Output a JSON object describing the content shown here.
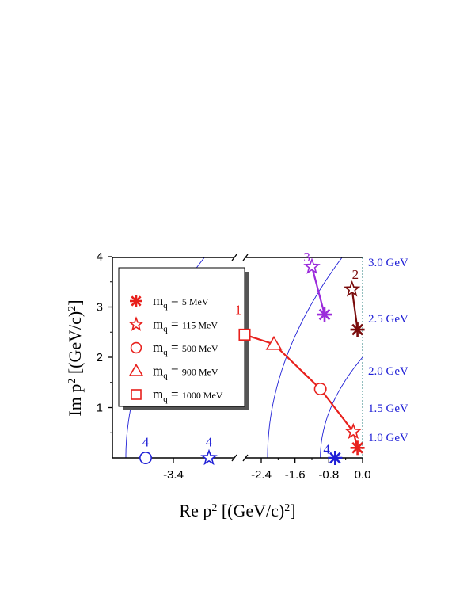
{
  "chart_data": {
    "type": "scatter",
    "xlabel": "Re p² [(GeV/c)²]",
    "ylabel": "Im p² [(GeV/c)²]",
    "xlim": [
      -4.0,
      0.0
    ],
    "ylim": [
      0.0,
      4.5
    ],
    "x_axis_break": true,
    "x_ticks": [
      {
        "value": -3.4,
        "label": "-3.4"
      },
      {
        "value": -2.4,
        "label": "-2.4"
      },
      {
        "value": -1.6,
        "label": "-1.6"
      },
      {
        "value": -0.8,
        "label": "-0.8"
      },
      {
        "value": 0.0,
        "label": "0.0"
      }
    ],
    "y_ticks": [
      1,
      2,
      3,
      4
    ],
    "energy_contours": [
      {
        "mass": 1.0,
        "label": "1.0 GeV"
      },
      {
        "mass": 1.5,
        "label": "1.5 GeV"
      },
      {
        "mass": 2.0,
        "label": "2.0 GeV"
      },
      {
        "mass": 2.5,
        "label": "2.5 GeV"
      },
      {
        "mass": 3.0,
        "label": "3.0 GeV"
      }
    ],
    "legend": {
      "placement": "top-left",
      "entries": [
        {
          "marker": "asterisk",
          "mq": "5 MeV"
        },
        {
          "marker": "star",
          "mq": "115 MeV"
        },
        {
          "marker": "circle",
          "mq": "500 MeV"
        },
        {
          "marker": "triangle",
          "mq": "900 MeV"
        },
        {
          "marker": "square",
          "mq": "1000 MeV"
        }
      ]
    },
    "series": [
      {
        "label": "1",
        "color": "#e8201c",
        "connected": true,
        "points": [
          {
            "marker": "asterisk",
            "x": -0.12,
            "y": 0.2
          },
          {
            "marker": "star",
            "x": -0.22,
            "y": 0.52
          },
          {
            "marker": "circle",
            "x": -1.0,
            "y": 1.37
          },
          {
            "marker": "triangle",
            "x": -2.1,
            "y": 2.26
          },
          {
            "marker": "square",
            "x": -2.5,
            "y": 2.45
          }
        ]
      },
      {
        "label": "2",
        "color": "#7a0b0b",
        "connected": true,
        "points": [
          {
            "marker": "asterisk",
            "x": -0.12,
            "y": 2.55
          },
          {
            "marker": "star",
            "x": -0.25,
            "y": 3.35
          }
        ]
      },
      {
        "label": "3",
        "color": "#9b2bdb",
        "connected": true,
        "points": [
          {
            "marker": "asterisk",
            "x": -0.9,
            "y": 2.85
          },
          {
            "marker": "star",
            "x": -1.2,
            "y": 3.8
          }
        ]
      },
      {
        "label": "4",
        "color": "#1f1fd6",
        "connected": false,
        "points": [
          {
            "marker": "asterisk",
            "x": -0.65,
            "y": 0.0
          },
          {
            "marker": "star",
            "x": -2.95,
            "y": 0.0
          },
          {
            "marker": "circle",
            "x": -3.75,
            "y": 0.0
          }
        ]
      }
    ]
  }
}
